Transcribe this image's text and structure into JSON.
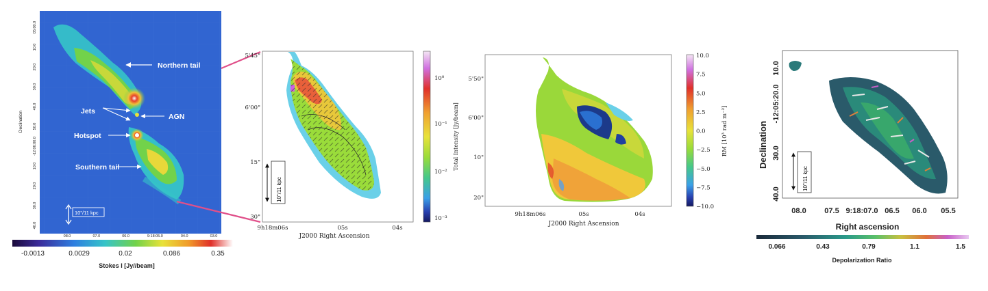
{
  "panel1": {
    "ylabel": "Declination",
    "yticks": [
      "05:00.0",
      "10.0",
      "20.0",
      "30.0",
      "40.0",
      "50.0",
      "-12:06:00.0",
      "10.0",
      "20.0",
      "30.0",
      "40.0"
    ],
    "xticks": [
      "08.0",
      "07.0",
      "06.0",
      "9:18:05.0",
      "04.0",
      "03.0"
    ],
    "annotations": {
      "northern_tail": "Northern tail",
      "jets": "Jets",
      "agn": "AGN",
      "hotspot": "Hotspot",
      "southern_tail": "Southern tail",
      "scalebar": "10\"/11 kpc"
    },
    "colorbar": {
      "ticks": [
        "-0.0013",
        "0.0029",
        "0.02",
        "0.086",
        "0.35"
      ],
      "label": "Stokes I [Jy//beam]"
    }
  },
  "panel2": {
    "yticks": [
      "5'45\"",
      "6'00\"",
      "15\"",
      "30\""
    ],
    "xticks": [
      "9h18m06s",
      "05s",
      "04s"
    ],
    "xlabel": "J2000 Right Ascension",
    "scalebar": "10\"/11 kpc",
    "colorbar": {
      "ticks": [
        "10^0",
        "10^-1",
        "10^-2",
        "10^-3"
      ],
      "label": "Total Intensity [Jy/beam]"
    }
  },
  "panel3": {
    "yticks": [
      "5'50\"",
      "6'00\"",
      "10\"",
      "20\""
    ],
    "xticks": [
      "9h18m06s",
      "05s",
      "04s"
    ],
    "xlabel": "J2000 Right Ascension",
    "colorbar": {
      "ticks": [
        "10.0",
        "7.5",
        "5.0",
        "2.5",
        "0.0",
        "−2.5",
        "−5.0",
        "−7.5",
        "−10.0"
      ],
      "label": "RM [10³ rad m⁻²]"
    }
  },
  "panel4": {
    "ylabel": "Declination",
    "yticks": [
      "10.0",
      "-12:05:20.0",
      "30.0",
      "40.0"
    ],
    "xticks": [
      "08.0",
      "07.5",
      "9:18:07.0",
      "06.5",
      "06.0",
      "05.5"
    ],
    "xlabel": "Right ascension",
    "scalebar": "10\"/11 kpc",
    "colorbar": {
      "ticks": [
        "0.066",
        "0.43",
        "0.79",
        "1.1",
        "1.5"
      ],
      "label": "Depolarization Ratio"
    }
  }
}
